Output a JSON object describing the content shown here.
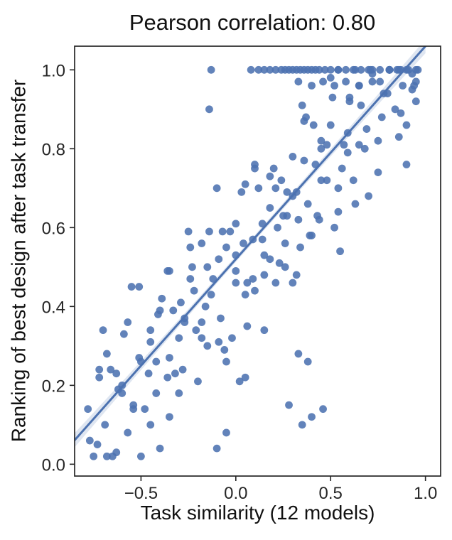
{
  "chart_data": {
    "type": "scatter",
    "title": "Pearson correlation: 0.80",
    "xlabel": "Task similarity (12 models)",
    "ylabel": "Ranking of best design after task transfer",
    "xlim": [
      -0.85,
      1.08
    ],
    "ylim": [
      -0.03,
      1.06
    ],
    "grid": false,
    "legend": "none",
    "point_color": "#4c72b0",
    "line_color": "#4c72b0",
    "band_color": "#4c72b0",
    "axis_color": "#262626",
    "xticks": {
      "values": [
        -0.5,
        0.0,
        0.5,
        1.0
      ],
      "labels": [
        "−0.5",
        "0.0",
        "0.5",
        "1.0"
      ]
    },
    "yticks": {
      "values": [
        0.0,
        0.2,
        0.4,
        0.6,
        0.8,
        1.0
      ],
      "labels": [
        "0.0",
        "0.2",
        "0.4",
        "0.6",
        "0.8",
        "1.0"
      ]
    },
    "regression": {
      "slope": 0.54,
      "intercept": 0.52
    },
    "points": [
      [
        -0.78,
        0.14
      ],
      [
        -0.75,
        0.02
      ],
      [
        -0.72,
        0.24
      ],
      [
        -0.69,
        0.1
      ],
      [
        -0.66,
        0.24
      ],
      [
        -0.63,
        0.03
      ],
      [
        -0.6,
        0.2
      ],
      [
        -0.57,
        0.36
      ],
      [
        -0.54,
        0.15
      ],
      [
        -0.51,
        0.27
      ],
      [
        -0.48,
        0.14
      ],
      [
        -0.45,
        0.34
      ],
      [
        -0.42,
        0.26
      ],
      [
        -0.39,
        0.42
      ],
      [
        -0.36,
        0.22
      ],
      [
        -0.33,
        0.39
      ],
      [
        -0.3,
        0.18
      ],
      [
        -0.27,
        0.37
      ],
      [
        -0.24,
        0.47
      ],
      [
        -0.21,
        0.34
      ],
      [
        -0.18,
        0.56
      ],
      [
        -0.15,
        0.3
      ],
      [
        -0.12,
        0.47
      ],
      [
        -0.09,
        0.52
      ],
      [
        -0.06,
        0.29
      ],
      [
        -0.03,
        0.59
      ],
      [
        0.0,
        0.46
      ],
      [
        0.03,
        0.69
      ],
      [
        0.06,
        0.46
      ],
      [
        0.09,
        0.57
      ],
      [
        0.12,
        0.7
      ],
      [
        0.15,
        0.48
      ],
      [
        0.18,
        0.65
      ],
      [
        0.21,
        0.46
      ],
      [
        0.24,
        0.72
      ],
      [
        0.27,
        0.63
      ],
      [
        0.3,
        0.78
      ],
      [
        0.33,
        0.62
      ],
      [
        0.36,
        0.87
      ],
      [
        0.39,
        0.58
      ],
      [
        0.42,
        0.76
      ],
      [
        0.45,
        0.82
      ],
      [
        0.48,
        0.72
      ],
      [
        0.51,
        0.93
      ],
      [
        0.54,
        0.7
      ],
      [
        0.57,
        0.81
      ],
      [
        0.6,
        0.93
      ],
      [
        0.63,
        0.66
      ],
      [
        0.66,
        0.91
      ],
      [
        0.69,
        0.85
      ],
      [
        0.72,
        1.0
      ],
      [
        0.75,
        0.82
      ],
      [
        0.78,
        0.94
      ],
      [
        0.81,
        1.0
      ],
      [
        0.84,
        0.9
      ],
      [
        0.87,
        1.0
      ],
      [
        0.9,
        0.86
      ],
      [
        0.93,
        0.99
      ],
      [
        0.96,
        1.0
      ],
      [
        -0.77,
        0.06
      ],
      [
        -0.72,
        0.22
      ],
      [
        -0.68,
        0.02
      ],
      [
        -0.63,
        0.23
      ],
      [
        -0.59,
        0.33
      ],
      [
        -0.54,
        0.14
      ],
      [
        -0.5,
        0.26
      ],
      [
        -0.45,
        0.1
      ],
      [
        -0.41,
        0.38
      ],
      [
        -0.36,
        0.49
      ],
      [
        -0.32,
        0.23
      ],
      [
        -0.27,
        0.36
      ],
      [
        -0.23,
        0.5
      ],
      [
        -0.18,
        0.36
      ],
      [
        -0.14,
        0.59
      ],
      [
        -0.09,
        0.31
      ],
      [
        -0.05,
        0.55
      ],
      [
        0.0,
        0.49
      ],
      [
        0.05,
        0.71
      ],
      [
        0.09,
        0.47
      ],
      [
        0.14,
        0.61
      ],
      [
        0.18,
        0.73
      ],
      [
        0.23,
        0.51
      ],
      [
        0.27,
        0.69
      ],
      [
        0.32,
        0.48
      ],
      [
        0.36,
        0.77
      ],
      [
        0.41,
        0.86
      ],
      [
        0.45,
        0.72
      ],
      [
        0.5,
        0.86
      ],
      [
        0.54,
        0.64
      ],
      [
        0.59,
        0.84
      ],
      [
        0.63,
        1.0
      ],
      [
        0.68,
        0.8
      ],
      [
        0.72,
        0.99
      ],
      [
        0.77,
        0.88
      ],
      [
        0.81,
        1.0
      ],
      [
        0.86,
        0.83
      ],
      [
        0.9,
        1.0
      ],
      [
        0.94,
        0.96
      ],
      [
        0.95,
        0.92
      ],
      [
        -0.7,
        0.34
      ],
      [
        -0.65,
        0.02
      ],
      [
        -0.6,
        0.18
      ],
      [
        -0.55,
        0.45
      ],
      [
        -0.5,
        0.02
      ],
      [
        -0.45,
        0.31
      ],
      [
        -0.4,
        0.04
      ],
      [
        -0.35,
        0.49
      ],
      [
        -0.3,
        0.32
      ],
      [
        -0.25,
        0.59
      ],
      [
        -0.2,
        0.21
      ],
      [
        -0.15,
        0.5
      ],
      [
        -0.1,
        0.7
      ],
      [
        -0.05,
        0.26
      ],
      [
        0.0,
        0.53
      ],
      [
        0.05,
        0.43
      ],
      [
        0.1,
        0.75
      ],
      [
        0.15,
        0.34
      ],
      [
        0.2,
        0.75
      ],
      [
        0.25,
        0.63
      ],
      [
        0.3,
        0.46
      ],
      [
        0.35,
        0.91
      ],
      [
        0.4,
        0.58
      ],
      [
        0.45,
        0.8
      ],
      [
        0.5,
        0.98
      ],
      [
        0.55,
        0.54
      ],
      [
        0.6,
        0.92
      ],
      [
        0.65,
        0.81
      ],
      [
        0.7,
        1.0
      ],
      [
        0.75,
        0.74
      ],
      [
        0.8,
        0.94
      ],
      [
        0.85,
        1.0
      ],
      [
        0.9,
        0.76
      ],
      [
        0.95,
        0.97
      ],
      [
        -0.73,
        0.05
      ],
      [
        -0.68,
        0.28
      ],
      [
        -0.62,
        0.19
      ],
      [
        -0.57,
        0.08
      ],
      [
        -0.51,
        0.45
      ],
      [
        -0.46,
        0.23
      ],
      [
        -0.4,
        0.39
      ],
      [
        -0.35,
        0.12
      ],
      [
        -0.29,
        0.41
      ],
      [
        -0.24,
        0.55
      ],
      [
        -0.18,
        0.32
      ],
      [
        -0.13,
        0.43
      ],
      [
        -0.07,
        0.59
      ],
      [
        -0.02,
        0.32
      ],
      [
        0.04,
        0.56
      ],
      [
        0.1,
        0.76
      ],
      [
        0.15,
        0.53
      ],
      [
        0.21,
        0.7
      ],
      [
        0.26,
        0.5
      ],
      [
        0.32,
        0.69
      ],
      [
        0.37,
        0.88
      ],
      [
        0.43,
        0.63
      ],
      [
        0.48,
        0.81
      ],
      [
        0.54,
        1.0
      ],
      [
        0.59,
        0.79
      ],
      [
        0.65,
        0.96
      ],
      [
        0.7,
        0.68
      ],
      [
        0.76,
        0.97
      ],
      [
        0.81,
        1.0
      ],
      [
        0.87,
        0.89
      ],
      [
        -0.13,
        1.0
      ],
      [
        0.08,
        1.0
      ],
      [
        0.12,
        1.0
      ],
      [
        0.15,
        1.0
      ],
      [
        0.18,
        1.0
      ],
      [
        0.21,
        1.0
      ],
      [
        0.24,
        1.0
      ],
      [
        0.26,
        1.0
      ],
      [
        0.28,
        1.0
      ],
      [
        0.3,
        1.0
      ],
      [
        0.32,
        1.0
      ],
      [
        0.34,
        1.0
      ],
      [
        0.36,
        1.0
      ],
      [
        0.38,
        1.0
      ],
      [
        0.4,
        1.0
      ],
      [
        0.42,
        1.0
      ],
      [
        0.44,
        1.0
      ],
      [
        0.47,
        1.0
      ],
      [
        0.5,
        1.0
      ],
      [
        0.54,
        1.0
      ],
      [
        0.58,
        1.0
      ],
      [
        0.62,
        1.0
      ],
      [
        0.66,
        1.0
      ],
      [
        0.71,
        1.0
      ],
      [
        0.76,
        1.0
      ],
      [
        0.81,
        1.0
      ],
      [
        0.86,
        1.0
      ],
      [
        0.91,
        1.0
      ],
      [
        0.95,
        1.0
      ],
      [
        0.33,
        0.97
      ],
      [
        0.4,
        0.96
      ],
      [
        0.46,
        0.97
      ],
      [
        0.52,
        0.96
      ],
      [
        0.58,
        0.97
      ],
      [
        0.65,
        0.96
      ],
      [
        0.72,
        0.97
      ],
      [
        0.88,
        0.96
      ],
      [
        0.93,
        0.95
      ],
      [
        -0.14,
        0.9
      ],
      [
        0.35,
        0.1
      ],
      [
        0.4,
        0.12
      ],
      [
        0.46,
        0.14
      ],
      [
        0.28,
        0.15
      ],
      [
        -0.1,
        0.04
      ],
      [
        -0.05,
        0.08
      ],
      [
        0.02,
        0.21
      ],
      [
        0.05,
        0.22
      ],
      [
        0.33,
        0.28
      ],
      [
        0.38,
        0.26
      ],
      [
        -0.42,
        0.18
      ],
      [
        -0.35,
        0.27
      ],
      [
        -0.28,
        0.24
      ],
      [
        -0.22,
        0.44
      ],
      [
        -0.16,
        0.4
      ],
      [
        -0.08,
        0.37
      ],
      [
        0.0,
        0.61
      ],
      [
        0.06,
        0.35
      ],
      [
        0.1,
        0.44
      ],
      [
        0.14,
        0.57
      ],
      [
        0.18,
        0.52
      ],
      [
        0.22,
        0.6
      ],
      [
        0.26,
        0.56
      ],
      [
        0.3,
        0.68
      ],
      [
        0.34,
        0.55
      ],
      [
        0.38,
        0.66
      ],
      [
        0.44,
        0.62
      ],
      [
        0.52,
        0.6
      ],
      [
        0.56,
        0.75
      ],
      [
        0.62,
        0.72
      ]
    ]
  }
}
